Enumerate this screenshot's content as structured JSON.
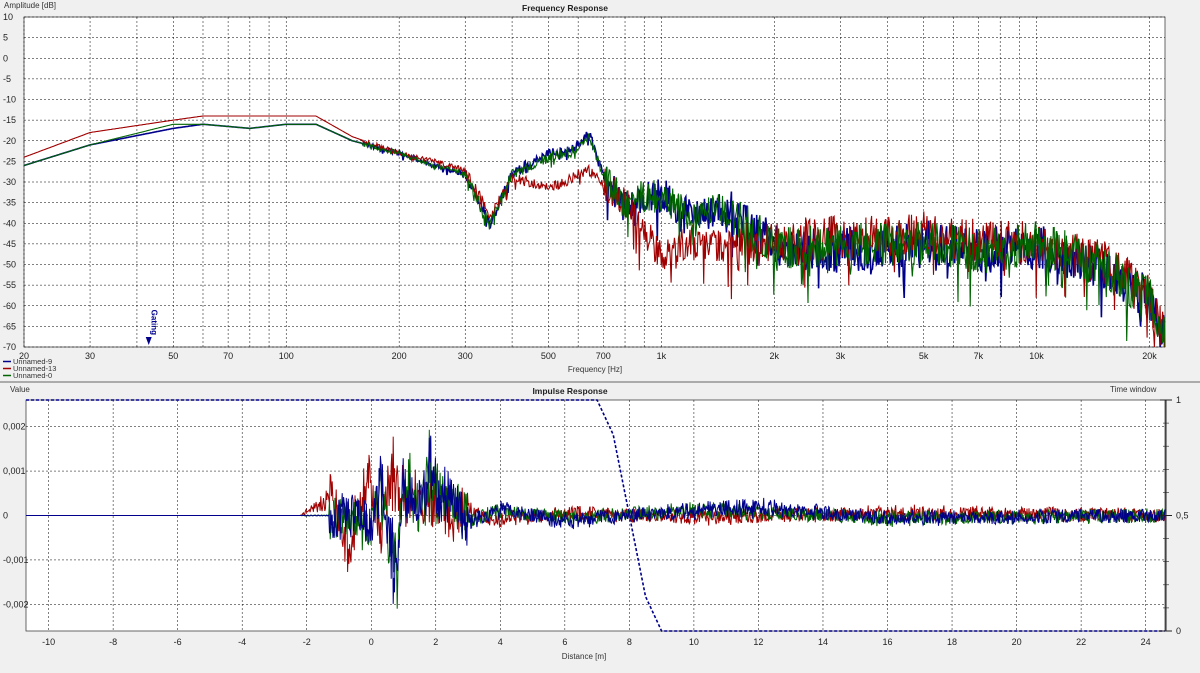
{
  "chart_data": [
    {
      "type": "line",
      "title": "Frequency Response",
      "xlabel": "Frequency [Hz]",
      "ylabel": "Amplitude [dB]",
      "xscale": "log",
      "xlim": [
        20,
        22000
      ],
      "ylim": [
        -70,
        10
      ],
      "grid": true,
      "legend_placement": "bottom-left",
      "x_ticks": [
        20,
        30,
        50,
        70,
        100,
        200,
        300,
        500,
        700,
        1000,
        2000,
        3000,
        5000,
        7000,
        10000,
        20000
      ],
      "x_tick_labels": [
        "20",
        "30",
        "50",
        "70",
        "100",
        "200",
        "300",
        "500",
        "700",
        "1k",
        "2k",
        "3k",
        "5k",
        "7k",
        "10k",
        "20k"
      ],
      "y_ticks": [
        10,
        5,
        0,
        -5,
        -10,
        -15,
        -20,
        -25,
        -30,
        -35,
        -40,
        -45,
        -50,
        -55,
        -60,
        -65,
        -70
      ],
      "marker": {
        "label": "Gating",
        "x": 43
      },
      "series": [
        {
          "name": "Unnamed-9",
          "color": "#00008b",
          "x": [
            20,
            30,
            50,
            60,
            80,
            100,
            120,
            150,
            200,
            250,
            300,
            350,
            400,
            450,
            500,
            550,
            600,
            640,
            700,
            800,
            900,
            1000,
            1200,
            1500,
            2000,
            3000,
            5000,
            7000,
            10000,
            15000,
            20000,
            22000
          ],
          "y": [
            -26,
            -21,
            -17,
            -16,
            -17,
            -16,
            -16,
            -20,
            -23,
            -26,
            -28,
            -40,
            -28,
            -25,
            -23,
            -22,
            -21,
            -18,
            -28,
            -36,
            -34,
            -32,
            -38,
            -36,
            -45,
            -46,
            -44,
            -46,
            -45,
            -50,
            -58,
            -68
          ]
        },
        {
          "name": "Unnamed-13",
          "color": "#a00000",
          "x": [
            20,
            30,
            50,
            60,
            80,
            100,
            120,
            150,
            200,
            250,
            300,
            350,
            400,
            450,
            500,
            550,
            600,
            640,
            700,
            800,
            900,
            1000,
            1200,
            1500,
            2000,
            3000,
            5000,
            7000,
            10000,
            15000,
            20000,
            22000
          ],
          "y": [
            -24,
            -18,
            -15,
            -14,
            -14,
            -14,
            -14,
            -19,
            -23,
            -25,
            -27,
            -38,
            -29,
            -30,
            -31,
            -30,
            -28,
            -27,
            -30,
            -34,
            -42,
            -47,
            -44,
            -45,
            -44,
            -43,
            -42,
            -44,
            -44,
            -49,
            -57,
            -68
          ]
        },
        {
          "name": "Unnamed-0",
          "color": "#006400",
          "x": [
            20,
            30,
            50,
            60,
            80,
            100,
            120,
            150,
            200,
            250,
            300,
            350,
            400,
            450,
            500,
            550,
            600,
            640,
            700,
            800,
            900,
            1000,
            1200,
            1500,
            2000,
            3000,
            5000,
            7000,
            10000,
            15000,
            20000,
            22000
          ],
          "y": [
            -26,
            -21,
            -16,
            -16,
            -17,
            -16,
            -16,
            -20,
            -23,
            -26,
            -28,
            -40,
            -28,
            -26,
            -24,
            -23,
            -22,
            -19,
            -28,
            -35,
            -33,
            -33,
            -38,
            -36,
            -46,
            -45,
            -44,
            -46,
            -44,
            -50,
            -58,
            -68
          ]
        }
      ]
    },
    {
      "type": "line",
      "title": "Impulse Response",
      "xlabel": "Distance [m]",
      "ylabel": "Value",
      "y2label": "Time window",
      "xlim": [
        -10.7,
        24.6
      ],
      "ylim": [
        -0.0026,
        0.0026
      ],
      "y2lim": [
        0,
        1
      ],
      "grid": true,
      "x_ticks": [
        -10,
        -8,
        -6,
        -4,
        -2,
        0,
        2,
        4,
        6,
        8,
        10,
        12,
        14,
        16,
        18,
        20,
        22,
        24
      ],
      "y_ticks": [
        0.002,
        0.001,
        0,
        -0.001,
        -0.002
      ],
      "y_tick_labels": [
        "0,002",
        "0,001",
        "0",
        "-0,001",
        "-0,002"
      ],
      "y2_ticks": [
        1,
        0.5,
        0
      ],
      "y2_tick_labels": [
        "1",
        "0,5",
        "0"
      ],
      "window": {
        "x": [
          -10.7,
          0,
          7.0,
          7.5,
          8.0,
          8.5,
          9.0,
          24.6
        ],
        "y": [
          1,
          1,
          1,
          0.85,
          0.5,
          0.15,
          0,
          0
        ]
      },
      "series": [
        {
          "name": "Unnamed-13",
          "color": "#a00000",
          "x": [
            -2.2,
            -1.2,
            -0.8,
            0,
            0.3,
            0.6,
            1.0,
            1.3,
            1.6,
            2.0,
            2.5,
            3.0,
            4.0,
            6.0,
            10.0,
            16.0,
            24.6
          ],
          "y": [
            0,
            0.0007,
            -0.0012,
            0.0014,
            -0.0005,
            0.0017,
            0.0005,
            0.001,
            0.0002,
            0.0007,
            -0.0001,
            0.0002,
            -0.0002,
            0.0001,
            -0.0001,
            0.0001,
            0
          ]
        },
        {
          "name": "Unnamed-0",
          "color": "#006400",
          "x": [
            -2.2,
            -0.5,
            0,
            0.3,
            0.6,
            0.8,
            1.0,
            1.5,
            1.8,
            2.0,
            2.5,
            3.0,
            4.0,
            6.0,
            10.0,
            12.0,
            16.0,
            24.6
          ],
          "y": [
            0,
            0,
            -0.0005,
            0.0012,
            -0.0013,
            -0.0018,
            0.0013,
            0.0003,
            0.0018,
            0.0008,
            0.0005,
            -0.0002,
            0.0002,
            -0.0001,
            0.0002,
            0.0001,
            -0.0001,
            0
          ]
        },
        {
          "name": "Unnamed-9",
          "color": "#00008b",
          "x": [
            -2.2,
            -0.5,
            0,
            0.3,
            0.6,
            0.8,
            1.0,
            1.5,
            1.8,
            2.0,
            2.5,
            3.0,
            4.0,
            6.0,
            10.0,
            12.0,
            16.0,
            24.6
          ],
          "y": [
            0,
            0,
            -0.0005,
            0.0012,
            -0.0014,
            -0.002,
            0.0014,
            0.0003,
            0.0016,
            0.0008,
            0.0006,
            -0.0003,
            0.0002,
            -0.0002,
            0.0002,
            0.0003,
            -0.0001,
            0
          ]
        }
      ]
    }
  ]
}
